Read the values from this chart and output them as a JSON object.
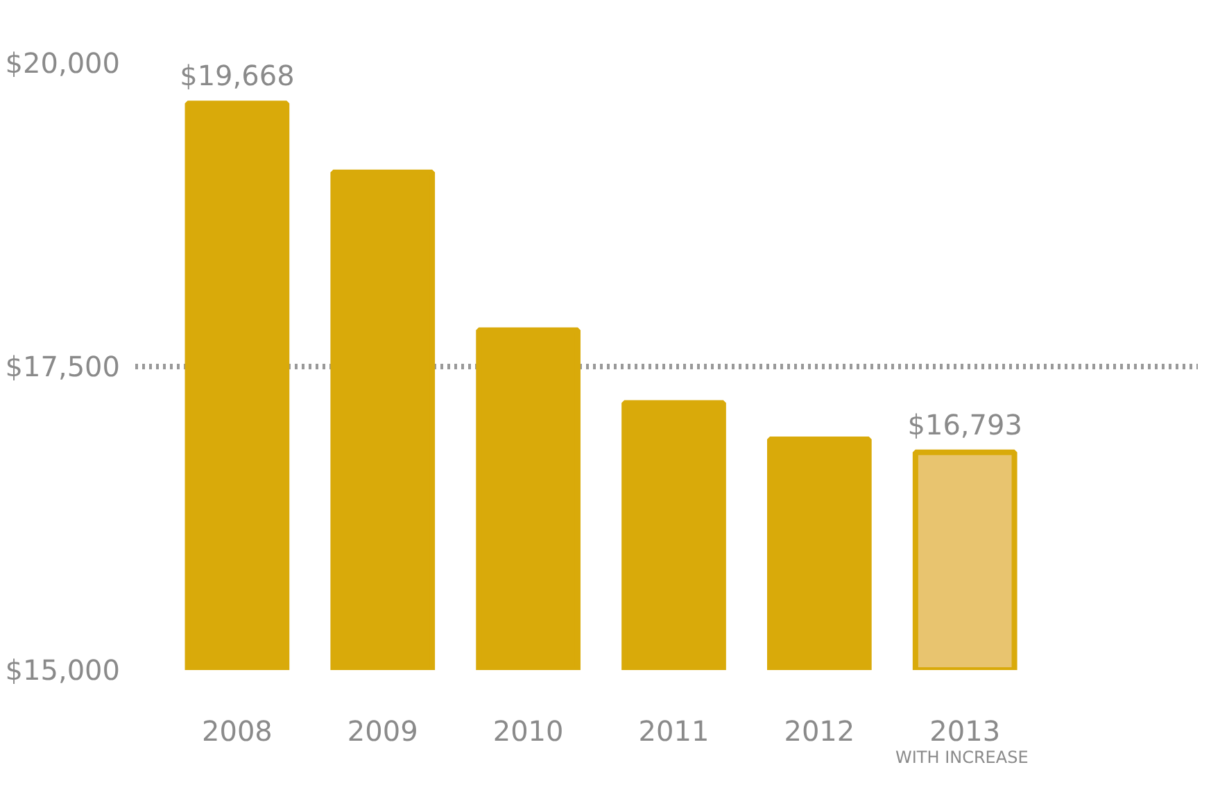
{
  "chart_data": {
    "type": "bar",
    "categories": [
      "2008",
      "2009",
      "2010",
      "2011",
      "2012",
      "2013"
    ],
    "values": [
      19668,
      19100,
      17800,
      17200,
      16900,
      16793
    ],
    "color": "#d9aa0a",
    "colors": [
      "#d9aa0a",
      "#d9aa0a",
      "#d9aa0a",
      "#d9aa0a",
      "#d9aa0a",
      "#e8c46f"
    ],
    "value_labels": [
      "$19,668",
      null,
      null,
      null,
      null,
      "$16,793"
    ],
    "ylim": [
      15000,
      20000
    ],
    "yticks": [
      {
        "value": 15000,
        "label": "$15,000"
      },
      {
        "value": 17500,
        "label": "$17,500"
      },
      {
        "value": 20000,
        "label": "$20,000"
      }
    ],
    "grid": "y",
    "annotations": [
      "WITH INCREASE"
    ]
  }
}
